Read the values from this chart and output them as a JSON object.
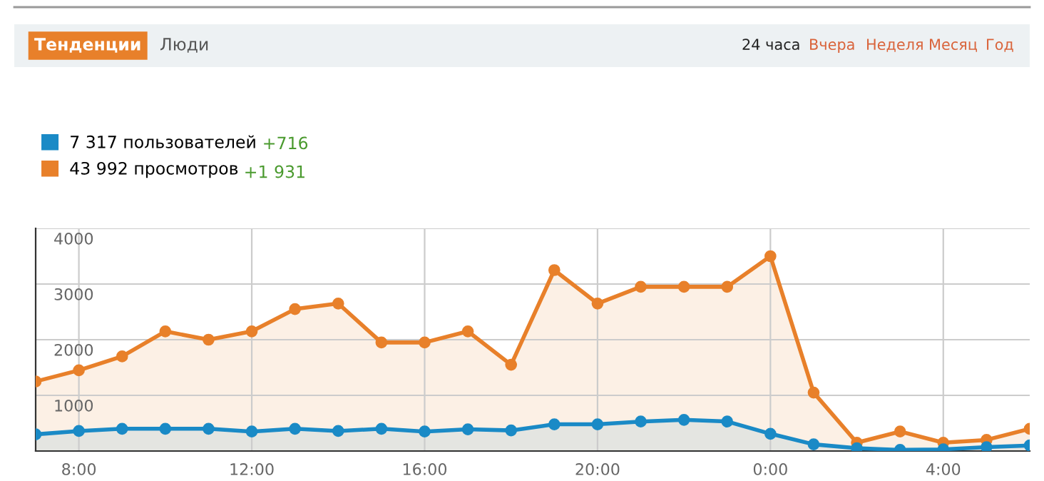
{
  "chart_data": {
    "type": "area",
    "categories": [
      null,
      "8:00",
      null,
      null,
      null,
      "12:00",
      null,
      null,
      null,
      "16:00",
      null,
      null,
      null,
      "20:00",
      null,
      null,
      null,
      "0:00",
      null,
      null,
      null,
      "4:00",
      null,
      null
    ],
    "series": [
      {
        "name": "7 317 пользователей",
        "color": "#1a8ac6",
        "values": [
          300,
          360,
          400,
          400,
          400,
          350,
          400,
          360,
          400,
          350,
          390,
          370,
          480,
          480,
          530,
          560,
          530,
          310,
          120,
          50,
          20,
          30,
          70,
          100
        ]
      },
      {
        "name": "43 992 просмотров",
        "color": "#e8802a",
        "values": [
          1250,
          1450,
          1700,
          2150,
          2000,
          2150,
          2550,
          2650,
          1950,
          1950,
          2150,
          1550,
          3250,
          2650,
          2950,
          2950,
          2950,
          3500,
          1050,
          150,
          350,
          150,
          200,
          400
        ]
      }
    ],
    "ylim": [
      0,
      4000
    ],
    "yticks": [
      1000,
      2000,
      3000,
      4000
    ],
    "grid": true,
    "marker": "circle",
    "legend": "top left",
    "annotations": [
      "Тенденции",
      "Люди",
      "24 часа",
      "Вчера",
      "Неделя",
      "Месяц",
      "Год",
      "+716",
      "+1 931"
    ]
  }
}
